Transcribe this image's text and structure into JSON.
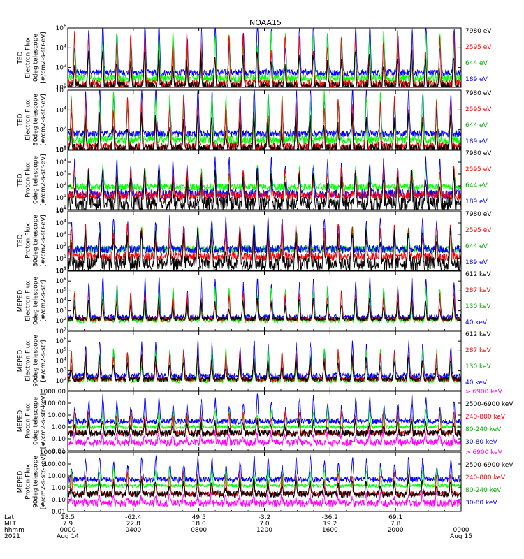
{
  "title": "NOAA15",
  "colors": {
    "black": "#000000",
    "red": "#ff0000",
    "green": "#00ff00",
    "blue": "#0000ff",
    "magenta": "#ff00ff"
  },
  "panels": [
    {
      "id": "ted-e-0",
      "ylabel": [
        "TED",
        "Electron Flux",
        "0deg telescope",
        "[#/cm2-s-str-eV]"
      ],
      "scale": "log",
      "ylim": [
        1,
        1000000
      ],
      "ticks": [
        {
          "v": 1,
          "l": "10",
          "e": "0"
        },
        {
          "v": 100,
          "l": "10",
          "e": "2"
        },
        {
          "v": 10000,
          "l": "10",
          "e": "4"
        },
        {
          "v": 1000000,
          "l": "10",
          "e": "6"
        }
      ],
      "legend": [
        {
          "label": "7980 eV",
          "color": "#000000"
        },
        {
          "label": "2595 eV",
          "color": "#ff0000"
        },
        {
          "label": "644 eV",
          "color": "#00aa00"
        },
        {
          "label": "189 eV",
          "color": "#0000ff"
        }
      ],
      "series": [
        {
          "name": "189 eV",
          "color": "#0000ff",
          "base": 30,
          "peak": 8000000,
          "noise": 0.35
        },
        {
          "name": "644 eV",
          "color": "#00ff00",
          "base": 8,
          "peak": 600000,
          "noise": 0.4
        },
        {
          "name": "2595 eV",
          "color": "#ff0000",
          "base": 2,
          "peak": 300000,
          "noise": 0.45
        },
        {
          "name": "7980 eV",
          "color": "#000000",
          "base": 1.2,
          "peak": 5000,
          "noise": 0.5
        }
      ]
    },
    {
      "id": "ted-e-30",
      "ylabel": [
        "TED",
        "Electron Flux",
        "30deg telescope",
        "[#/cm2-s-str-eV]"
      ],
      "scale": "log",
      "ylim": [
        1,
        1000000
      ],
      "ticks": [
        {
          "v": 1,
          "l": "10",
          "e": "0"
        },
        {
          "v": 100,
          "l": "10",
          "e": "2"
        },
        {
          "v": 10000,
          "l": "10",
          "e": "4"
        },
        {
          "v": 1000000,
          "l": "10",
          "e": "6"
        }
      ],
      "legend": [
        {
          "label": "7980 eV",
          "color": "#000000"
        },
        {
          "label": "2595 eV",
          "color": "#ff0000"
        },
        {
          "label": "644 eV",
          "color": "#00aa00"
        },
        {
          "label": "189 eV",
          "color": "#0000ff"
        }
      ],
      "series": [
        {
          "name": "189 eV",
          "color": "#0000ff",
          "base": 40,
          "peak": 3000000,
          "noise": 0.35
        },
        {
          "name": "644 eV",
          "color": "#00ff00",
          "base": 10,
          "peak": 500000,
          "noise": 0.4
        },
        {
          "name": "2595 eV",
          "color": "#ff0000",
          "base": 2,
          "peak": 200000,
          "noise": 0.45
        },
        {
          "name": "7980 eV",
          "color": "#000000",
          "base": 1.2,
          "peak": 3000,
          "noise": 0.5
        }
      ]
    },
    {
      "id": "ted-p-0",
      "ylabel": [
        "TED",
        "Proton Flux",
        "0deg telescope",
        "[#/cm2-s-str-eV]"
      ],
      "scale": "log",
      "ylim": [
        1,
        100000
      ],
      "ticks": [
        {
          "v": 1,
          "l": "10",
          "e": "0"
        },
        {
          "v": 10,
          "l": "10",
          "e": "1"
        },
        {
          "v": 100,
          "l": "10",
          "e": "2"
        },
        {
          "v": 1000,
          "l": "10",
          "e": "3"
        },
        {
          "v": 10000,
          "l": "10",
          "e": "4"
        },
        {
          "v": 100000,
          "l": "10",
          "e": "5"
        }
      ],
      "legend": [
        {
          "label": "7980 eV",
          "color": "#000000"
        },
        {
          "label": "2595 eV",
          "color": "#ff0000"
        },
        {
          "label": "644 eV",
          "color": "#00aa00"
        },
        {
          "label": "189 eV",
          "color": "#0000ff"
        }
      ],
      "series": [
        {
          "name": "644 eV",
          "color": "#00ff00",
          "base": 80,
          "peak": 4000,
          "noise": 0.3
        },
        {
          "name": "189 eV",
          "color": "#0000ff",
          "base": 20,
          "peak": 20000,
          "noise": 0.4
        },
        {
          "name": "2595 eV",
          "color": "#ff0000",
          "base": 15,
          "peak": 3000,
          "noise": 0.35
        },
        {
          "name": "7980 eV",
          "color": "#000000",
          "base": 3,
          "peak": 2000,
          "noise": 0.6
        }
      ]
    },
    {
      "id": "ted-p-30",
      "ylabel": [
        "TED",
        "Proton Flux",
        "30deg telescope",
        "[#/cm2-s-str-eV]"
      ],
      "scale": "log",
      "ylim": [
        1,
        100000
      ],
      "ticks": [
        {
          "v": 1,
          "l": "10",
          "e": "0"
        },
        {
          "v": 10,
          "l": "10",
          "e": "1"
        },
        {
          "v": 100,
          "l": "10",
          "e": "2"
        },
        {
          "v": 1000,
          "l": "10",
          "e": "3"
        },
        {
          "v": 10000,
          "l": "10",
          "e": "4"
        },
        {
          "v": 100000,
          "l": "10",
          "e": "5"
        }
      ],
      "legend": [
        {
          "label": "7980 eV",
          "color": "#000000"
        },
        {
          "label": "2595 eV",
          "color": "#ff0000"
        },
        {
          "label": "644 eV",
          "color": "#00aa00"
        },
        {
          "label": "189 eV",
          "color": "#0000ff"
        }
      ],
      "series": [
        {
          "name": "644 eV",
          "color": "#00ff00",
          "base": 60,
          "peak": 6000,
          "noise": 0.3
        },
        {
          "name": "189 eV",
          "color": "#0000ff",
          "base": 60,
          "peak": 30000,
          "noise": 0.35
        },
        {
          "name": "2595 eV",
          "color": "#ff0000",
          "base": 15,
          "peak": 8000,
          "noise": 0.35
        },
        {
          "name": "7980 eV",
          "color": "#000000",
          "base": 4,
          "peak": 3000,
          "noise": 0.6
        }
      ]
    },
    {
      "id": "meped-e-0",
      "ylabel": [
        "MEPED",
        "Electron Flux",
        "0deg telescope",
        "[#/cm2-s-str]"
      ],
      "scale": "log",
      "ylim": [
        10,
        10000000
      ],
      "ticks": [
        {
          "v": 100,
          "l": "10",
          "e": "2"
        },
        {
          "v": 1000,
          "l": "10",
          "e": "3"
        },
        {
          "v": 10000,
          "l": "10",
          "e": "4"
        },
        {
          "v": 100000,
          "l": "10",
          "e": "5"
        },
        {
          "v": 1000000,
          "l": "10",
          "e": "6"
        },
        {
          "v": 10000000,
          "l": "10",
          "e": "7"
        }
      ],
      "legend": [
        {
          "label": "612 keV",
          "color": "#000000"
        },
        {
          "label": "287 keV",
          "color": "#ff0000"
        },
        {
          "label": "130 keV",
          "color": "#00aa00"
        },
        {
          "label": "40 keV",
          "color": "#0000ff"
        }
      ],
      "series": [
        {
          "name": "40 keV",
          "color": "#0000ff",
          "base": 200,
          "peak": 3000000,
          "noise": 0.3
        },
        {
          "name": "130 keV",
          "color": "#00ff00",
          "base": 100,
          "peak": 300000,
          "noise": 0.2
        },
        {
          "name": "287 keV",
          "color": "#ff0000",
          "base": 150,
          "peak": 80000,
          "noise": 0.2
        },
        {
          "name": "612 keV",
          "color": "#000000",
          "base": 150,
          "peak": 20000,
          "noise": 0.2
        }
      ]
    },
    {
      "id": "meped-e-90",
      "ylabel": [
        "MEPED",
        "Electron Flux",
        "90deg telescope",
        "[#/cm2-s-str]"
      ],
      "scale": "log",
      "ylim": [
        10,
        10000000
      ],
      "ticks": [
        {
          "v": 100,
          "l": "10",
          "e": "2"
        },
        {
          "v": 1000,
          "l": "10",
          "e": "3"
        },
        {
          "v": 10000,
          "l": "10",
          "e": "4"
        },
        {
          "v": 100000,
          "l": "10",
          "e": "5"
        },
        {
          "v": 1000000,
          "l": "10",
          "e": "6"
        },
        {
          "v": 10000000,
          "l": "10",
          "e": "7"
        }
      ],
      "legend": [
        {
          "label": "612 keV",
          "color": "#000000"
        },
        {
          "label": "287 keV",
          "color": "#ff0000"
        },
        {
          "label": "130 keV",
          "color": "#00aa00"
        },
        {
          "label": "40 keV",
          "color": "#0000ff"
        }
      ],
      "series": [
        {
          "name": "40 keV",
          "color": "#0000ff",
          "base": 300,
          "peak": 1000000,
          "noise": 0.3
        },
        {
          "name": "130 keV",
          "color": "#00ff00",
          "base": 100,
          "peak": 200000,
          "noise": 0.2
        },
        {
          "name": "287 keV",
          "color": "#ff0000",
          "base": 150,
          "peak": 100000,
          "noise": 0.25
        },
        {
          "name": "612 keV",
          "color": "#000000",
          "base": 150,
          "peak": 30000,
          "noise": 0.25
        }
      ]
    },
    {
      "id": "meped-p-0",
      "ylabel": [
        "MEPED",
        "Proton Flux",
        "0deg telescope",
        "[#/cm2-s-str-keV]"
      ],
      "scale": "log",
      "ylim": [
        0.01,
        1000
      ],
      "ticks": [
        {
          "v": 0.01,
          "l": "0.01"
        },
        {
          "v": 0.1,
          "l": "0.10"
        },
        {
          "v": 1,
          "l": "1.00"
        },
        {
          "v": 10,
          "l": "10.00"
        },
        {
          "v": 100,
          "l": "100.00"
        },
        {
          "v": 1000,
          "l": "1000.00"
        }
      ],
      "legend": [
        {
          "label": "> 6900 keV",
          "color": "#ff00ff"
        },
        {
          "label": "2500-6900 keV",
          "color": "#000000"
        },
        {
          "label": "240-800 keV",
          "color": "#ff0000"
        },
        {
          "label": "80-240 keV",
          "color": "#00aa00"
        },
        {
          "label": "30-80 keV",
          "color": "#0000ff"
        }
      ],
      "series": [
        {
          "name": "30-80 keV",
          "color": "#0000ff",
          "base": 3,
          "peak": 400,
          "noise": 0.25
        },
        {
          "name": "80-240 keV",
          "color": "#00ff00",
          "base": 1,
          "peak": 30,
          "noise": 0.15
        },
        {
          "name": "240-800 keV",
          "color": "#ff0000",
          "base": 0.3,
          "peak": 20,
          "noise": 0.2
        },
        {
          "name": "2500-6900 keV",
          "color": "#000000",
          "base": 0.3,
          "peak": 3,
          "noise": 0.3
        },
        {
          "name": "> 6900 keV",
          "color": "#ff00ff",
          "base": 0.05,
          "peak": 0.3,
          "noise": 0.3
        }
      ]
    },
    {
      "id": "meped-p-90",
      "ylabel": [
        "MEPED",
        "Proton Flux",
        "90deg telescope",
        "[#/cm2-s-str-keV]"
      ],
      "scale": "log",
      "ylim": [
        0.01,
        1000
      ],
      "ticks": [
        {
          "v": 0.01,
          "l": "0.01"
        },
        {
          "v": 0.1,
          "l": "0.10"
        },
        {
          "v": 1,
          "l": "1.00"
        },
        {
          "v": 10,
          "l": "10.00"
        },
        {
          "v": 100,
          "l": "100.00"
        },
        {
          "v": 1000,
          "l": "1000.00"
        }
      ],
      "legend": [
        {
          "label": "> 6900 keV",
          "color": "#ff00ff"
        },
        {
          "label": "2500-6900 keV",
          "color": "#000000"
        },
        {
          "label": "240-800 keV",
          "color": "#ff0000"
        },
        {
          "label": "80-240 keV",
          "color": "#00aa00"
        },
        {
          "label": "30-80 keV",
          "color": "#0000ff"
        }
      ],
      "series": [
        {
          "name": "30-80 keV",
          "color": "#0000ff",
          "base": 5,
          "peak": 500,
          "noise": 0.25
        },
        {
          "name": "80-240 keV",
          "color": "#00ff00",
          "base": 1.5,
          "peak": 40,
          "noise": 0.15
        },
        {
          "name": "240-800 keV",
          "color": "#ff0000",
          "base": 0.3,
          "peak": 20,
          "noise": 0.2
        },
        {
          "name": "2500-6900 keV",
          "color": "#000000",
          "base": 0.3,
          "peak": 5,
          "noise": 0.3
        },
        {
          "name": "> 6900 keV",
          "color": "#ff00ff",
          "base": 0.05,
          "peak": 0.3,
          "noise": 0.3
        }
      ]
    }
  ],
  "chart_data": {
    "type": "line",
    "title": "NOAA15",
    "x_range_hours": [
      0,
      24
    ],
    "peaks_per_day": 28,
    "xaxis": {
      "row_labels": [
        "Lat",
        "MLT",
        "hhmm",
        "2021"
      ],
      "ticks": [
        {
          "hour": 0,
          "lat": "18.5",
          "mlt": "7.9",
          "hhmm": "0000",
          "date": "Aug 14"
        },
        {
          "hour": 4,
          "lat": "-62.4",
          "mlt": "22.8",
          "hhmm": "0400",
          "date": ""
        },
        {
          "hour": 8,
          "lat": "49.5",
          "mlt": "18.0",
          "hhmm": "0800",
          "date": ""
        },
        {
          "hour": 12,
          "lat": "-3.2",
          "mlt": "7.0",
          "hhmm": "1200",
          "date": ""
        },
        {
          "hour": 16,
          "lat": "-36.2",
          "mlt": "19.2",
          "hhmm": "1600",
          "date": ""
        },
        {
          "hour": 20,
          "lat": "69.1",
          "mlt": "7.8",
          "hhmm": "2000",
          "date": ""
        },
        {
          "hour": 24,
          "lat": "",
          "mlt": "",
          "hhmm": "0000",
          "date": "Aug 15"
        }
      ]
    }
  }
}
